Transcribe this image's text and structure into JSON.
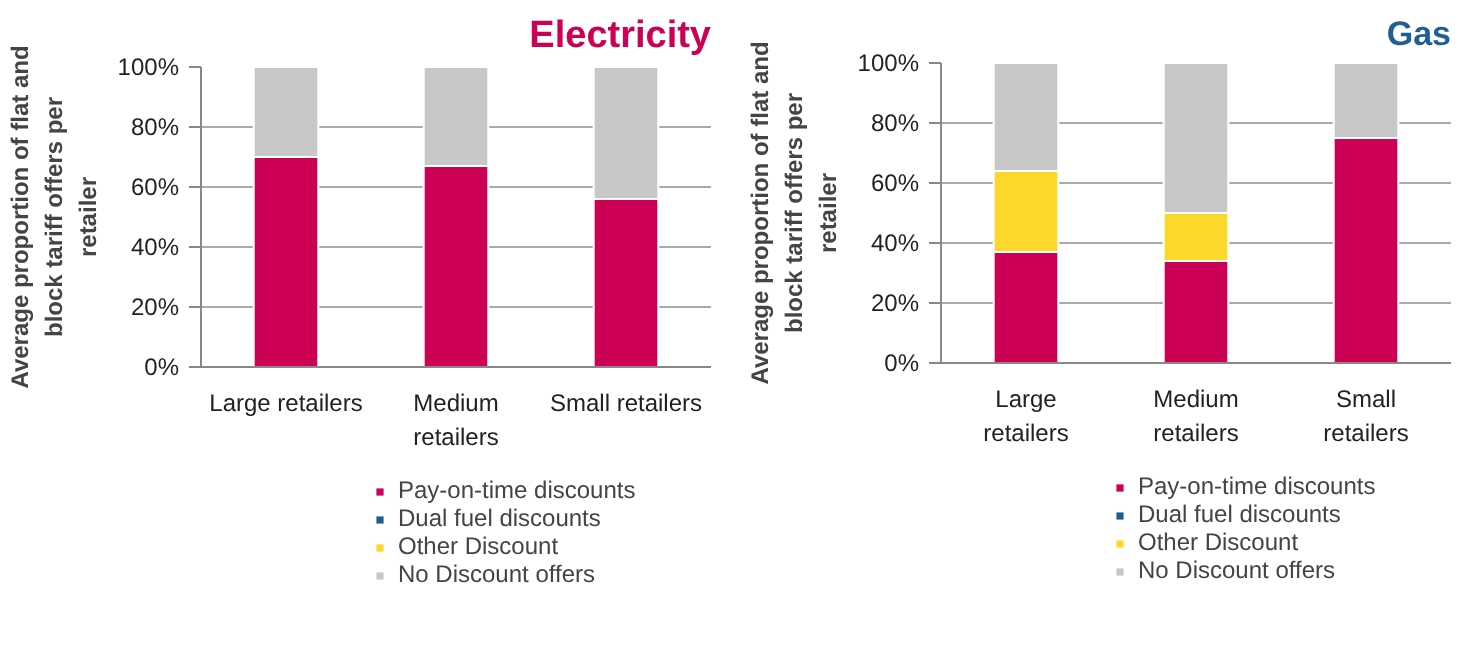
{
  "chart_data": [
    {
      "type": "bar",
      "stacked": true,
      "title": "Electricity",
      "ylabel": "Average proportion of flat and block tariff offers per retailer",
      "categories": [
        "Large retailers",
        "Medium retailers",
        "Small retailers"
      ],
      "series": [
        {
          "name": "Pay-on-time discounts",
          "color": "#cc0055",
          "values": [
            70,
            67,
            56
          ]
        },
        {
          "name": "Dual fuel discounts",
          "color": "#1f5f8f",
          "values": [
            0,
            0,
            0
          ]
        },
        {
          "name": "Other Discount",
          "color": "#fcd82a",
          "values": [
            0,
            0,
            0
          ]
        },
        {
          "name": "No Discount offers",
          "color": "#c8c8c8",
          "values": [
            30,
            33,
            44
          ]
        }
      ],
      "ylim": [
        0,
        100
      ],
      "yticks": [
        {
          "value": 0,
          "label": "0%"
        },
        {
          "value": 20,
          "label": "20%"
        },
        {
          "value": 40,
          "label": "40%"
        },
        {
          "value": 60,
          "label": "60%"
        },
        {
          "value": 80,
          "label": "80%"
        },
        {
          "value": 100,
          "label": "100%"
        }
      ],
      "grid": "y",
      "legend": "bottom"
    },
    {
      "type": "bar",
      "stacked": true,
      "title": "Gas",
      "ylabel": "Average proportion of flat and block tariff offers per retailer",
      "categories": [
        "Large retailers",
        "Medium retailers",
        "Small retailers"
      ],
      "series": [
        {
          "name": "Pay-on-time discounts",
          "color": "#cc0055",
          "values": [
            37,
            34,
            75
          ]
        },
        {
          "name": "Dual fuel discounts",
          "color": "#1f5f8f",
          "values": [
            0,
            0,
            0
          ]
        },
        {
          "name": "Other Discount",
          "color": "#fcd82a",
          "values": [
            27,
            16,
            0
          ]
        },
        {
          "name": "No Discount offers",
          "color": "#c8c8c8",
          "values": [
            36,
            50,
            25
          ]
        }
      ],
      "ylim": [
        0,
        100
      ],
      "yticks": [
        {
          "value": 0,
          "label": "0%"
        },
        {
          "value": 20,
          "label": "20%"
        },
        {
          "value": 40,
          "label": "40%"
        },
        {
          "value": 60,
          "label": "60%"
        },
        {
          "value": 80,
          "label": "80%"
        },
        {
          "value": 100,
          "label": "100%"
        }
      ],
      "grid": "y",
      "legend": "bottom"
    }
  ]
}
